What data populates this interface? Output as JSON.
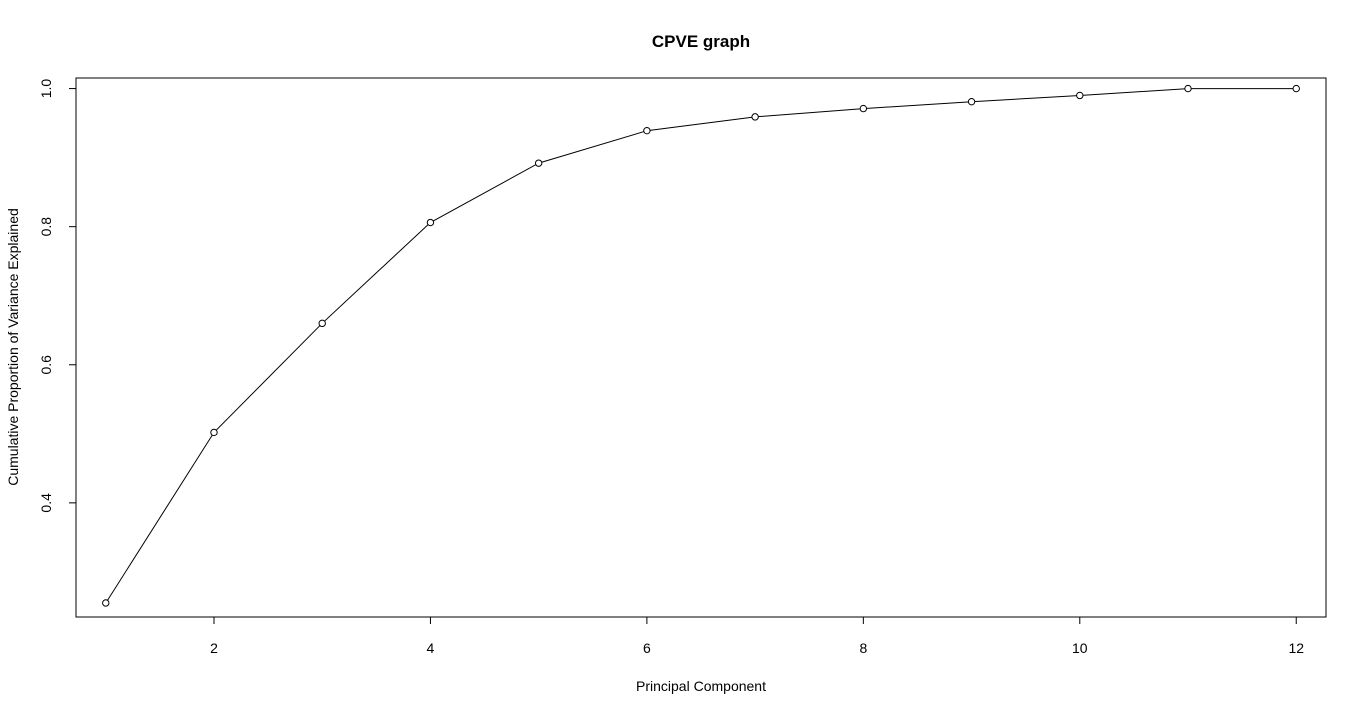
{
  "chart_data": {
    "type": "line",
    "title": "CPVE graph",
    "xlabel": "Principal Component",
    "ylabel": "Cumulative Proportion of Variance Explained",
    "x": [
      1,
      2,
      3,
      4,
      5,
      6,
      7,
      8,
      9,
      10,
      11,
      12
    ],
    "series": [
      {
        "values": [
          0.255,
          0.502,
          0.66,
          0.806,
          0.892,
          0.939,
          0.959,
          0.971,
          0.981,
          0.99,
          1.0,
          1.0
        ]
      }
    ],
    "xlim": [
      0.725,
      12.275
    ],
    "ylim": [
      0.2347,
      1.0153
    ],
    "x_ticks": [
      2,
      4,
      6,
      8,
      10,
      12
    ],
    "x_tick_labels": [
      "2",
      "4",
      "6",
      "8",
      "10",
      "12"
    ],
    "y_ticks": [
      0.4,
      0.6,
      0.8,
      1.0
    ],
    "y_tick_labels": [
      "0.4",
      "0.6",
      "0.8",
      "1.0"
    ],
    "grid": false,
    "legend": "none",
    "marker": "open-circle",
    "line_color": "#000000"
  }
}
